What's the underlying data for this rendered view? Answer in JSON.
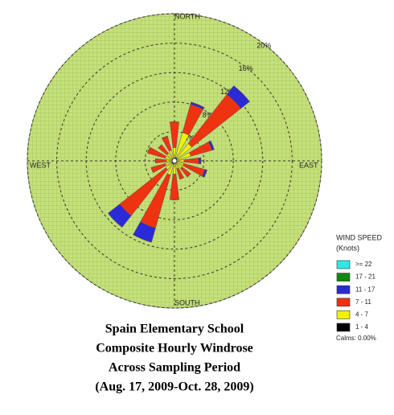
{
  "chart_data": {
    "type": "windrose",
    "title": [
      "Spain Elementary School",
      "Composite Hourly Windrose",
      "Across Sampling Period",
      "(Aug. 17, 2009-Oct. 28, 2009)"
    ],
    "compass_labels": [
      "NORTH",
      "EAST",
      "SOUTH",
      "WEST"
    ],
    "categories": [
      null,
      null,
      null,
      null,
      null,
      null,
      null,
      null,
      null,
      null,
      null,
      null,
      null,
      null,
      null,
      null
    ],
    "rlim": [
      0,
      20
    ],
    "rticks": [
      {
        "value": 4,
        "label": "4%"
      },
      {
        "value": 8,
        "label": "8%"
      },
      {
        "value": 12,
        "label": "12%"
      },
      {
        "value": 16,
        "label": "16%"
      },
      {
        "value": 20,
        "label": "20%"
      }
    ],
    "grid": true,
    "legend_title": [
      "WIND SPEED",
      "(Knots)"
    ],
    "calms": "Calms: 0.00%",
    "series": [
      {
        "name": ">= 22",
        "color": "#33e6e6",
        "values": [
          0,
          0,
          0,
          0,
          0,
          0,
          0,
          0,
          0,
          0,
          0,
          0,
          0,
          0,
          0,
          0
        ]
      },
      {
        "name": "17 - 21",
        "color": "#118811",
        "values": [
          0,
          0,
          0,
          0,
          0,
          0,
          0,
          0,
          0,
          0,
          0,
          0,
          0,
          0,
          0,
          0
        ]
      },
      {
        "name": "11 - 17",
        "color": "#2a2ad8",
        "values": [
          0,
          0.3,
          1.5,
          0.3,
          0.3,
          0.3,
          0,
          0,
          0,
          2,
          2,
          0,
          0,
          0,
          0,
          0
        ]
      },
      {
        "name": "7 - 11",
        "color": "#ee3311",
        "values": [
          3.5,
          4,
          8.5,
          3,
          2,
          3,
          1.5,
          1.5,
          3.5,
          7.5,
          8,
          2,
          1.5,
          2.5,
          1.5,
          2
        ]
      },
      {
        "name": "4 - 7",
        "color": "#f2f200",
        "values": [
          1.5,
          3.5,
          2.5,
          2,
          1,
          1,
          1,
          0.8,
          1.5,
          1.5,
          1,
          1,
          0.8,
          1,
          1,
          1.2
        ]
      },
      {
        "name": "1 - 4",
        "color": "#000000",
        "values": [
          0.3,
          0.5,
          0.5,
          0.3,
          0.3,
          0.3,
          0.3,
          0.3,
          0.3,
          0.5,
          0.5,
          0.3,
          0.3,
          0.3,
          0.3,
          0.3
        ]
      }
    ]
  }
}
